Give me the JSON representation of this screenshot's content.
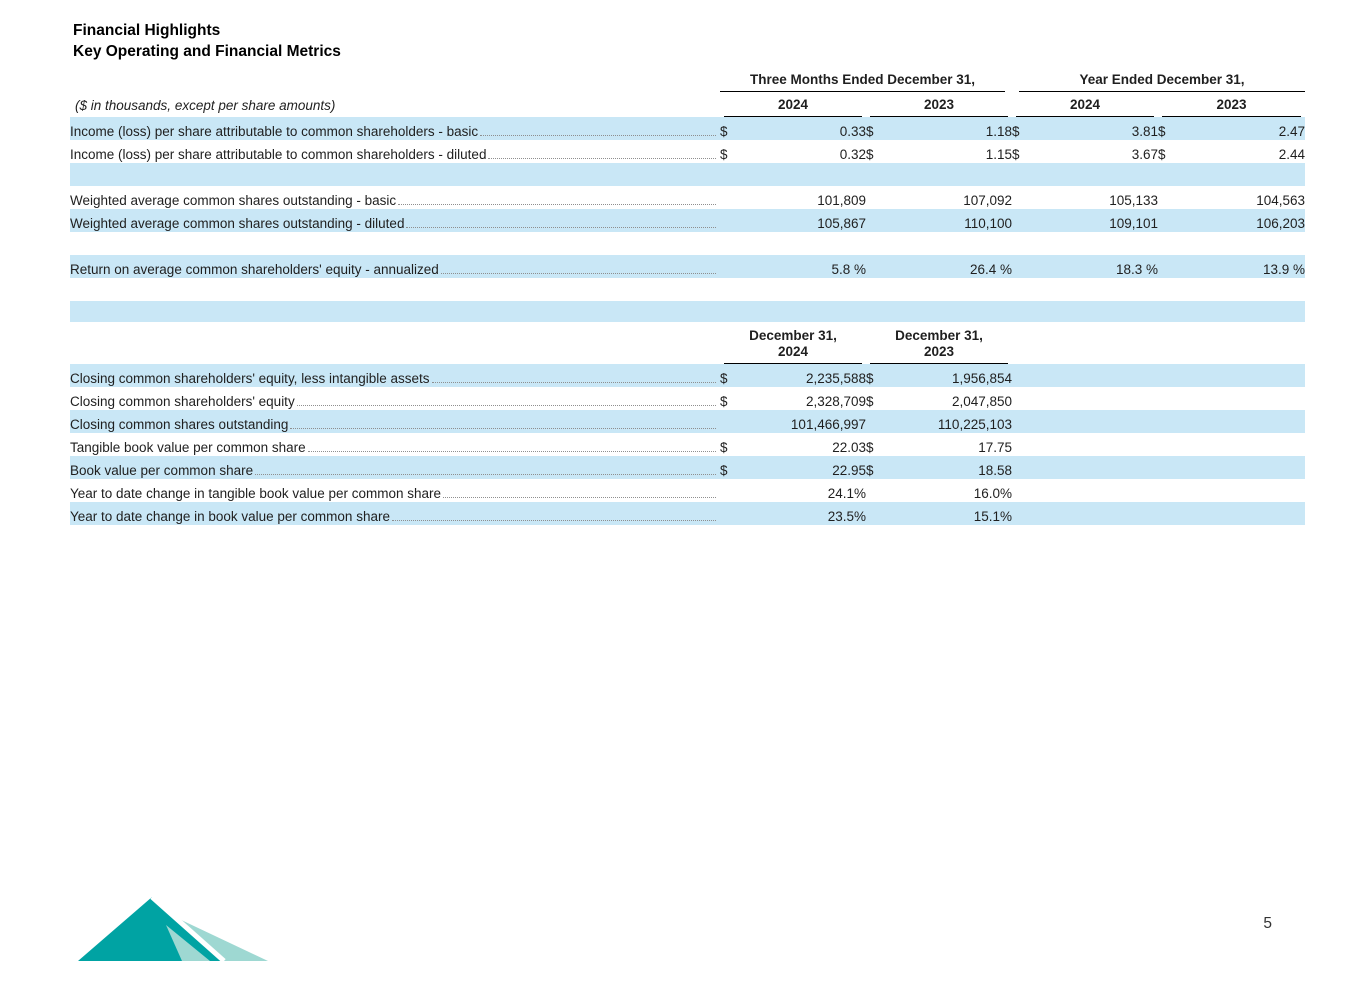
{
  "page": {
    "title": "Financial Highlights",
    "subtitle": "Key Operating and Financial Metrics",
    "page_number": "5",
    "highlight_color": "#c9e7f6",
    "logo": {
      "name": "mountain-logo",
      "dark_teal": "#00a3a3",
      "light_teal": "#9ed8d2"
    }
  },
  "metrics_table": {
    "note": "($ in thousands, except per share amounts)",
    "group_headers": [
      {
        "label": "Three Months Ended December 31,"
      },
      {
        "label": "Year Ended December 31,"
      }
    ],
    "col_headers": [
      "2024",
      "2023",
      "2024",
      "2023"
    ],
    "rows": [
      {
        "label": "Income (loss) per share attributable to common shareholders - basic",
        "shaded": true,
        "cells": [
          [
            "$",
            "0.33"
          ],
          [
            "$",
            "1.18"
          ],
          [
            "$",
            "3.81"
          ],
          [
            "$",
            "2.47"
          ]
        ]
      },
      {
        "label": "Income (loss) per share attributable to common shareholders - diluted",
        "shaded": false,
        "cells": [
          [
            "$",
            "0.32"
          ],
          [
            "$",
            "1.15"
          ],
          [
            "$",
            "3.67"
          ],
          [
            "$",
            "2.44"
          ]
        ]
      },
      {
        "spacer": true,
        "shaded": true
      },
      {
        "label": "Weighted average common shares outstanding - basic",
        "shaded": false,
        "cells": [
          [
            "",
            "101,809"
          ],
          [
            "",
            "107,092"
          ],
          [
            "",
            "105,133"
          ],
          [
            "",
            "104,563"
          ]
        ]
      },
      {
        "label": "Weighted average common shares outstanding - diluted",
        "shaded": true,
        "cells": [
          [
            "",
            "105,867"
          ],
          [
            "",
            "110,100"
          ],
          [
            "",
            "109,101"
          ],
          [
            "",
            "106,203"
          ]
        ]
      },
      {
        "spacer": true,
        "shaded": false
      },
      {
        "label": "Return on average common shareholders' equity - annualized",
        "shaded": true,
        "cells": [
          [
            "",
            "5.8 %"
          ],
          [
            "",
            "26.4 %"
          ],
          [
            "",
            "18.3 %"
          ],
          [
            "",
            "13.9 %"
          ]
        ]
      }
    ]
  },
  "balance_table": {
    "col_headers": [
      {
        "line1": "December 31,",
        "line2": "2024"
      },
      {
        "line1": "December 31,",
        "line2": "2023"
      }
    ],
    "rows": [
      {
        "label": "Closing common shareholders' equity, less intangible assets",
        "shaded": true,
        "cells": [
          [
            "$",
            "2,235,588"
          ],
          [
            "$",
            "1,956,854"
          ]
        ]
      },
      {
        "label": "Closing common shareholders' equity",
        "shaded": false,
        "cells": [
          [
            "$",
            "2,328,709"
          ],
          [
            "$",
            "2,047,850"
          ]
        ]
      },
      {
        "label": "Closing common shares outstanding",
        "shaded": true,
        "cells": [
          [
            "",
            "101,466,997"
          ],
          [
            "",
            "110,225,103"
          ]
        ]
      },
      {
        "label": "Tangible book value per common share",
        "shaded": false,
        "cells": [
          [
            "$",
            "22.03"
          ],
          [
            "$",
            "17.75"
          ]
        ]
      },
      {
        "label": "Book value per common share",
        "shaded": true,
        "cells": [
          [
            "$",
            "22.95"
          ],
          [
            "$",
            "18.58"
          ]
        ]
      },
      {
        "label": "Year to date change in tangible book value per common share",
        "shaded": false,
        "cells": [
          [
            "",
            "24.1%"
          ],
          [
            "",
            "16.0%"
          ]
        ]
      },
      {
        "label": "Year to date change in book value per common share",
        "shaded": true,
        "cells": [
          [
            "",
            "23.5%"
          ],
          [
            "",
            "15.1%"
          ]
        ]
      }
    ]
  }
}
